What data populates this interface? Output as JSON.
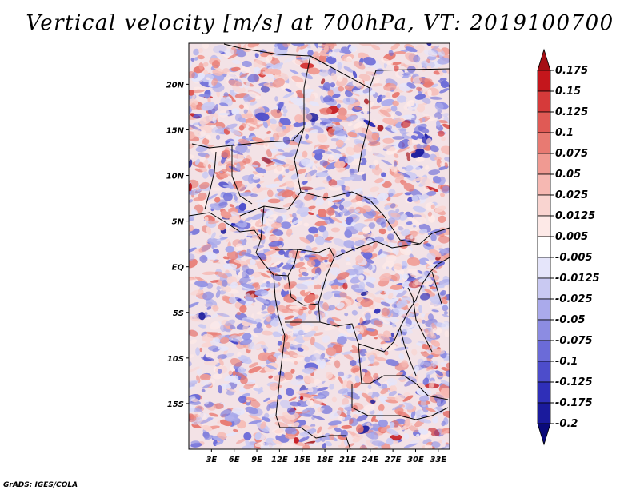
{
  "title": "Vertical velocity [m/s] at 700hPa, VT: 2019100700",
  "footer": "GrADS: IGES/COLA",
  "map": {
    "lat_ticks": [
      "20N",
      "15N",
      "10N",
      "5N",
      "EQ",
      "5S",
      "10S",
      "15S"
    ],
    "lon_ticks": [
      "3E",
      "6E",
      "9E",
      "12E",
      "15E",
      "18E",
      "21E",
      "24E",
      "27E",
      "30E",
      "33E"
    ],
    "lon_range": [
      0,
      34.5
    ],
    "lat_range": [
      -20,
      24.5
    ]
  },
  "colorbar": {
    "levels": [
      "0.175",
      "0.15",
      "0.125",
      "0.1",
      "0.075",
      "0.05",
      "0.025",
      "0.0125",
      "0.005",
      "-0.005",
      "-0.0125",
      "-0.025",
      "-0.05",
      "-0.075",
      "-0.1",
      "-0.125",
      "-0.175",
      "-0.2"
    ],
    "colors": [
      "#a50f15",
      "#c4161c",
      "#d63a3a",
      "#e05a55",
      "#e87a72",
      "#f09a92",
      "#f6b8b2",
      "#f9d4d0",
      "#fde9e7",
      "#ffffff",
      "#e5e5fa",
      "#c9c9f2",
      "#aaaaeb",
      "#8c8ce2",
      "#6b6bd8",
      "#4d4dcb",
      "#2f2fb8",
      "#1a1a9c",
      "#0a0a7a"
    ]
  }
}
